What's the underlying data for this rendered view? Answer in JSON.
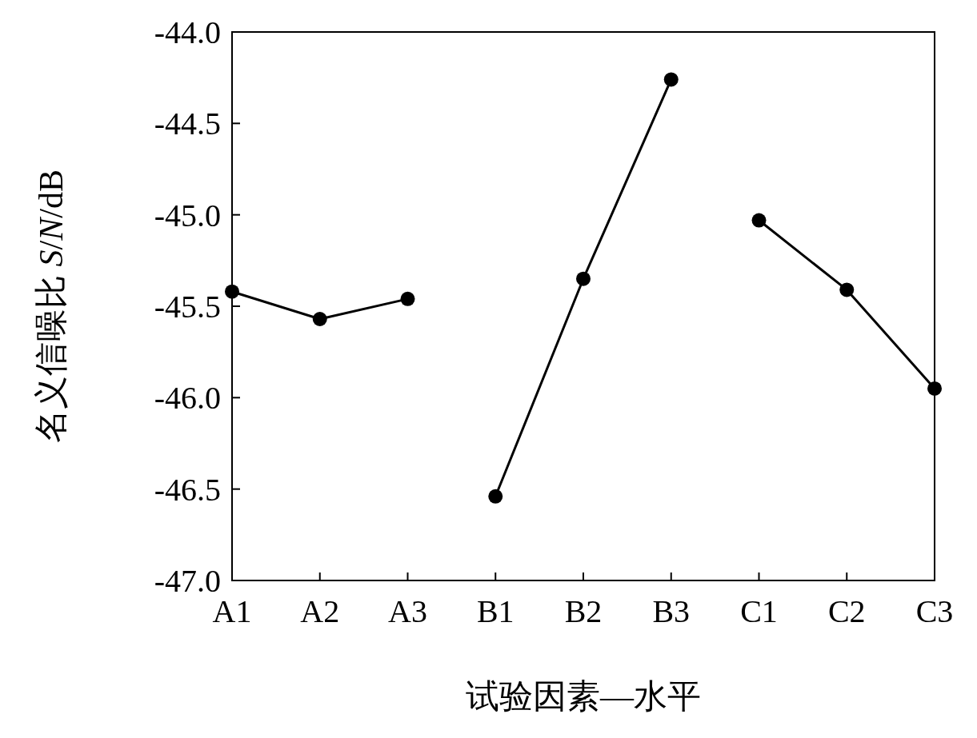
{
  "chart_data": {
    "type": "line",
    "xlabel": "试验因素—水平",
    "ylabel": "名义信噪比 *S*/*N*/dB",
    "categories": [
      "A1",
      "A2",
      "A3",
      "B1",
      "B2",
      "B3",
      "C1",
      "C2",
      "C3"
    ],
    "series": [
      {
        "color": "#000000",
        "values": [
          -45.42,
          -45.57,
          -45.46,
          null,
          null,
          null,
          null,
          null,
          null
        ]
      },
      {
        "color": "#000000",
        "values": [
          null,
          null,
          null,
          -46.54,
          -45.35,
          -44.26,
          null,
          null,
          null
        ]
      },
      {
        "color": "#000000",
        "values": [
          null,
          null,
          null,
          null,
          null,
          null,
          -45.03,
          -45.41,
          -45.95
        ]
      }
    ],
    "ylim": [
      -47,
      -44
    ],
    "yticks": [
      {
        "value": -47,
        "label": "-47.0"
      },
      {
        "value": -46.5,
        "label": "-46.5"
      },
      {
        "value": -46,
        "label": "-46.0"
      },
      {
        "value": -45.5,
        "label": "-45.5"
      },
      {
        "value": -45,
        "label": "-45.0"
      },
      {
        "value": -44.5,
        "label": "-44.5"
      },
      {
        "value": -44,
        "label": "-44.0"
      }
    ],
    "marker": "circle",
    "line_style": "solid",
    "grid": false
  }
}
